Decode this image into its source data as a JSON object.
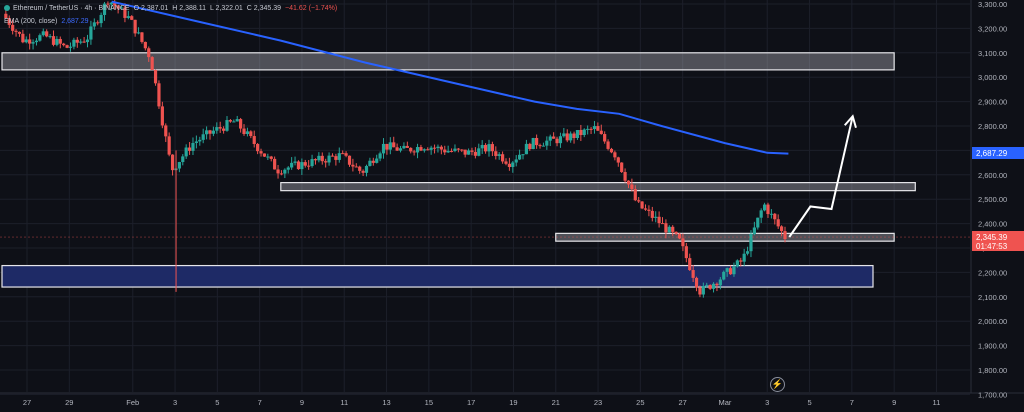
{
  "legend": {
    "symbol": "Ethereum / TetherUS · 4h · BINANCE",
    "open": "O 2,387.01",
    "high": "H 2,388.11",
    "low": "L 2,322.01",
    "close": "C 2,345.39",
    "change": "−41.62 (−1.74%)",
    "ema_label": "EMA (200, close)",
    "ema_value": "2,687.29"
  },
  "price_badges": {
    "ema": "2,687.29",
    "last": "2,345.39",
    "countdown": "01:47:53"
  },
  "icons": {
    "bolt": "lightning-icon"
  },
  "colors": {
    "background": "#0e1017",
    "up": "#26a69a",
    "down": "#ef5350",
    "ema": "#2962ff",
    "zone_grey": "rgba(200,200,210,0.35)",
    "zone_blue": "#1e2a66",
    "arrow": "#ffffff"
  },
  "chart_data": {
    "type": "candlestick",
    "title": "Ethereum / TetherUS · 4h · BINANCE",
    "x_tick_labels": [
      "27",
      "29",
      "Feb",
      "3",
      "5",
      "7",
      "9",
      "11",
      "13",
      "15",
      "17",
      "19",
      "21",
      "23",
      "25",
      "27",
      "Mar",
      "3",
      "5",
      "7",
      "9",
      "11"
    ],
    "y_tick_labels": [
      "3,300.00",
      "3,200.00",
      "3,100.00",
      "3,000.00",
      "2,900.00",
      "2,800.00",
      "2,700.00",
      "2,600.00",
      "2,500.00",
      "2,400.00",
      "2,300.00",
      "2,200.00",
      "2,100.00",
      "2,000.00",
      "1,900.00",
      "1,800.00",
      "1,700.00"
    ],
    "ylim": [
      1660,
      3330
    ],
    "series_path": [
      [
        "Jan 26",
        3260
      ],
      [
        "Jan 27",
        3150
      ],
      [
        "Jan 28",
        3170
      ],
      [
        "Jan 29",
        3120
      ],
      [
        "Jan 30",
        3160
      ],
      [
        "Jan 31",
        3320
      ],
      [
        "Feb 1",
        3240
      ],
      [
        "Feb 2",
        3080
      ],
      [
        "Feb 3",
        2620
      ],
      [
        "Feb 4",
        2730
      ],
      [
        "Feb 5",
        2780
      ],
      [
        "Feb 6",
        2820
      ],
      [
        "Feb 7",
        2720
      ],
      [
        "Feb 8",
        2620
      ],
      [
        "Feb 9",
        2640
      ],
      [
        "Feb 10",
        2660
      ],
      [
        "Feb 11",
        2680
      ],
      [
        "Feb 12",
        2610
      ],
      [
        "Feb 13",
        2720
      ],
      [
        "Feb 14",
        2700
      ],
      [
        "Feb 15",
        2720
      ],
      [
        "Feb 16",
        2700
      ],
      [
        "Feb 17",
        2690
      ],
      [
        "Feb 18",
        2710
      ],
      [
        "Feb 19",
        2650
      ],
      [
        "Feb 20",
        2730
      ],
      [
        "Feb 21",
        2740
      ],
      [
        "Feb 22",
        2760
      ],
      [
        "Feb 23",
        2790
      ],
      [
        "Feb 24",
        2680
      ],
      [
        "Feb 25",
        2480
      ],
      [
        "Feb 26",
        2410
      ],
      [
        "Feb 27",
        2330
      ],
      [
        "Feb 28",
        2120
      ],
      [
        "Mar 1",
        2180
      ],
      [
        "Mar 2",
        2250
      ],
      [
        "Mar 3",
        2480
      ],
      [
        "Mar 4",
        2345
      ]
    ],
    "ema": {
      "name": "EMA (200, close)",
      "points": [
        [
          "Jan 31",
          3310
        ],
        [
          "Feb 4",
          3230
        ],
        [
          "Feb 8",
          3150
        ],
        [
          "Feb 12",
          3060
        ],
        [
          "Feb 16",
          2980
        ],
        [
          "Feb 20",
          2900
        ],
        [
          "Feb 22",
          2870
        ],
        [
          "Feb 24",
          2850
        ],
        [
          "Feb 26",
          2800
        ],
        [
          "Mar 1",
          2730
        ],
        [
          "Mar 3",
          2690
        ],
        [
          "Mar 4",
          2687
        ]
      ]
    },
    "zones": [
      {
        "kind": "resistance",
        "x": [
          "Jan 26",
          "Mar 9"
        ],
        "y": [
          3030,
          3100
        ]
      },
      {
        "kind": "support",
        "x": [
          "Feb 8",
          "Mar 10"
        ],
        "y": [
          2535,
          2568
        ]
      },
      {
        "kind": "support",
        "x": [
          "Feb 21",
          "Mar 9"
        ],
        "y": [
          2328,
          2360
        ]
      },
      {
        "kind": "demand",
        "x": [
          "Jan 26",
          "Mar 8"
        ],
        "y": [
          2140,
          2228
        ]
      }
    ],
    "projection": [
      [
        "Mar 3",
        2345
      ],
      [
        "Mar 4",
        2470
      ],
      [
        "Mar 5",
        2460
      ],
      [
        "Mar 6",
        2840
      ]
    ],
    "grid": true,
    "legend_position": "top-left"
  }
}
